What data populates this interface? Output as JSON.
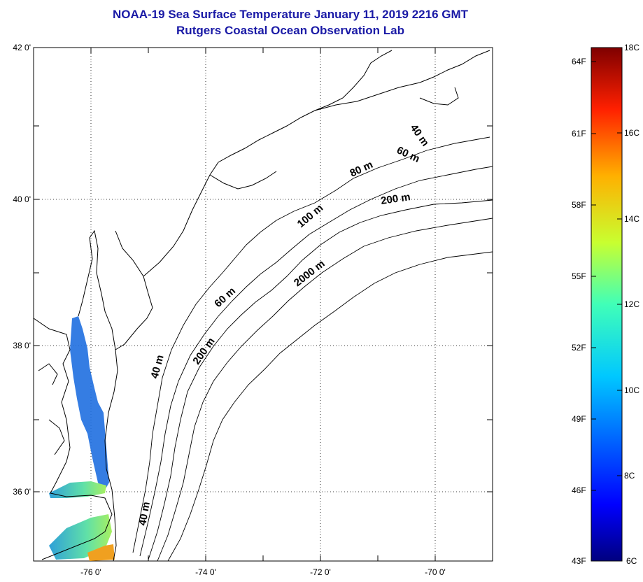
{
  "title_line1": "NOAA-19 Sea Surface Temperature January 11, 2019 2216 GMT",
  "title_line2": "Rutgers Coastal Ocean Observation Lab",
  "lat_labels": [
    "42 0'",
    "40 0'",
    "38 0'",
    "36 0'"
  ],
  "lon_labels": [
    "-76 0'",
    "-74 0'",
    "-72 0'",
    "-70 0'"
  ],
  "isobath_labels": [
    "40 m",
    "60 m",
    "80 m",
    "200 m",
    "100 m",
    "2000 m",
    "60 m",
    "40 m",
    "200 m",
    "40 m"
  ],
  "colorbar": {
    "fahrenheit": [
      "64F",
      "61F",
      "58F",
      "55F",
      "52F",
      "49F",
      "46F",
      "43F"
    ],
    "celsius": [
      "18C",
      "16C",
      "14C",
      "12C",
      "10C",
      "8C",
      "6C"
    ],
    "min_c": 6,
    "max_c": 18
  },
  "colors": {
    "title": "#1a1aa6",
    "sst_cold": "#1f6fe0",
    "sst_mid": "#6fe0a0",
    "sst_warm": "#f0a020"
  }
}
